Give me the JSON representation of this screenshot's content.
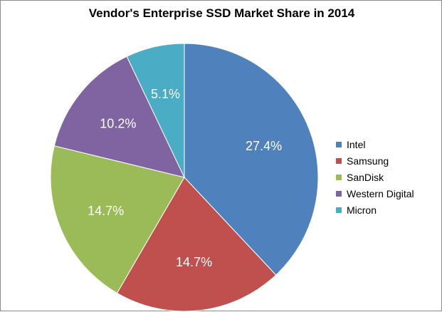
{
  "chart_data": {
    "type": "pie",
    "title": "Vendor's Enterprise SSD Market Share in 2014",
    "categories": [
      "Intel",
      "Samsung",
      "SanDisk",
      "Western Digital",
      "Micron"
    ],
    "values": [
      27.4,
      14.7,
      14.7,
      10.2,
      5.1
    ],
    "value_labels": [
      "27.4%",
      "14.7%",
      "14.7%",
      "10.2%",
      "5.1%"
    ],
    "colors": [
      "#4f81bd",
      "#c0504d",
      "#9bbb59",
      "#8064a2",
      "#4bacc6"
    ],
    "legend_position": "right",
    "start_angle_deg": 0,
    "direction": "clockwise"
  }
}
